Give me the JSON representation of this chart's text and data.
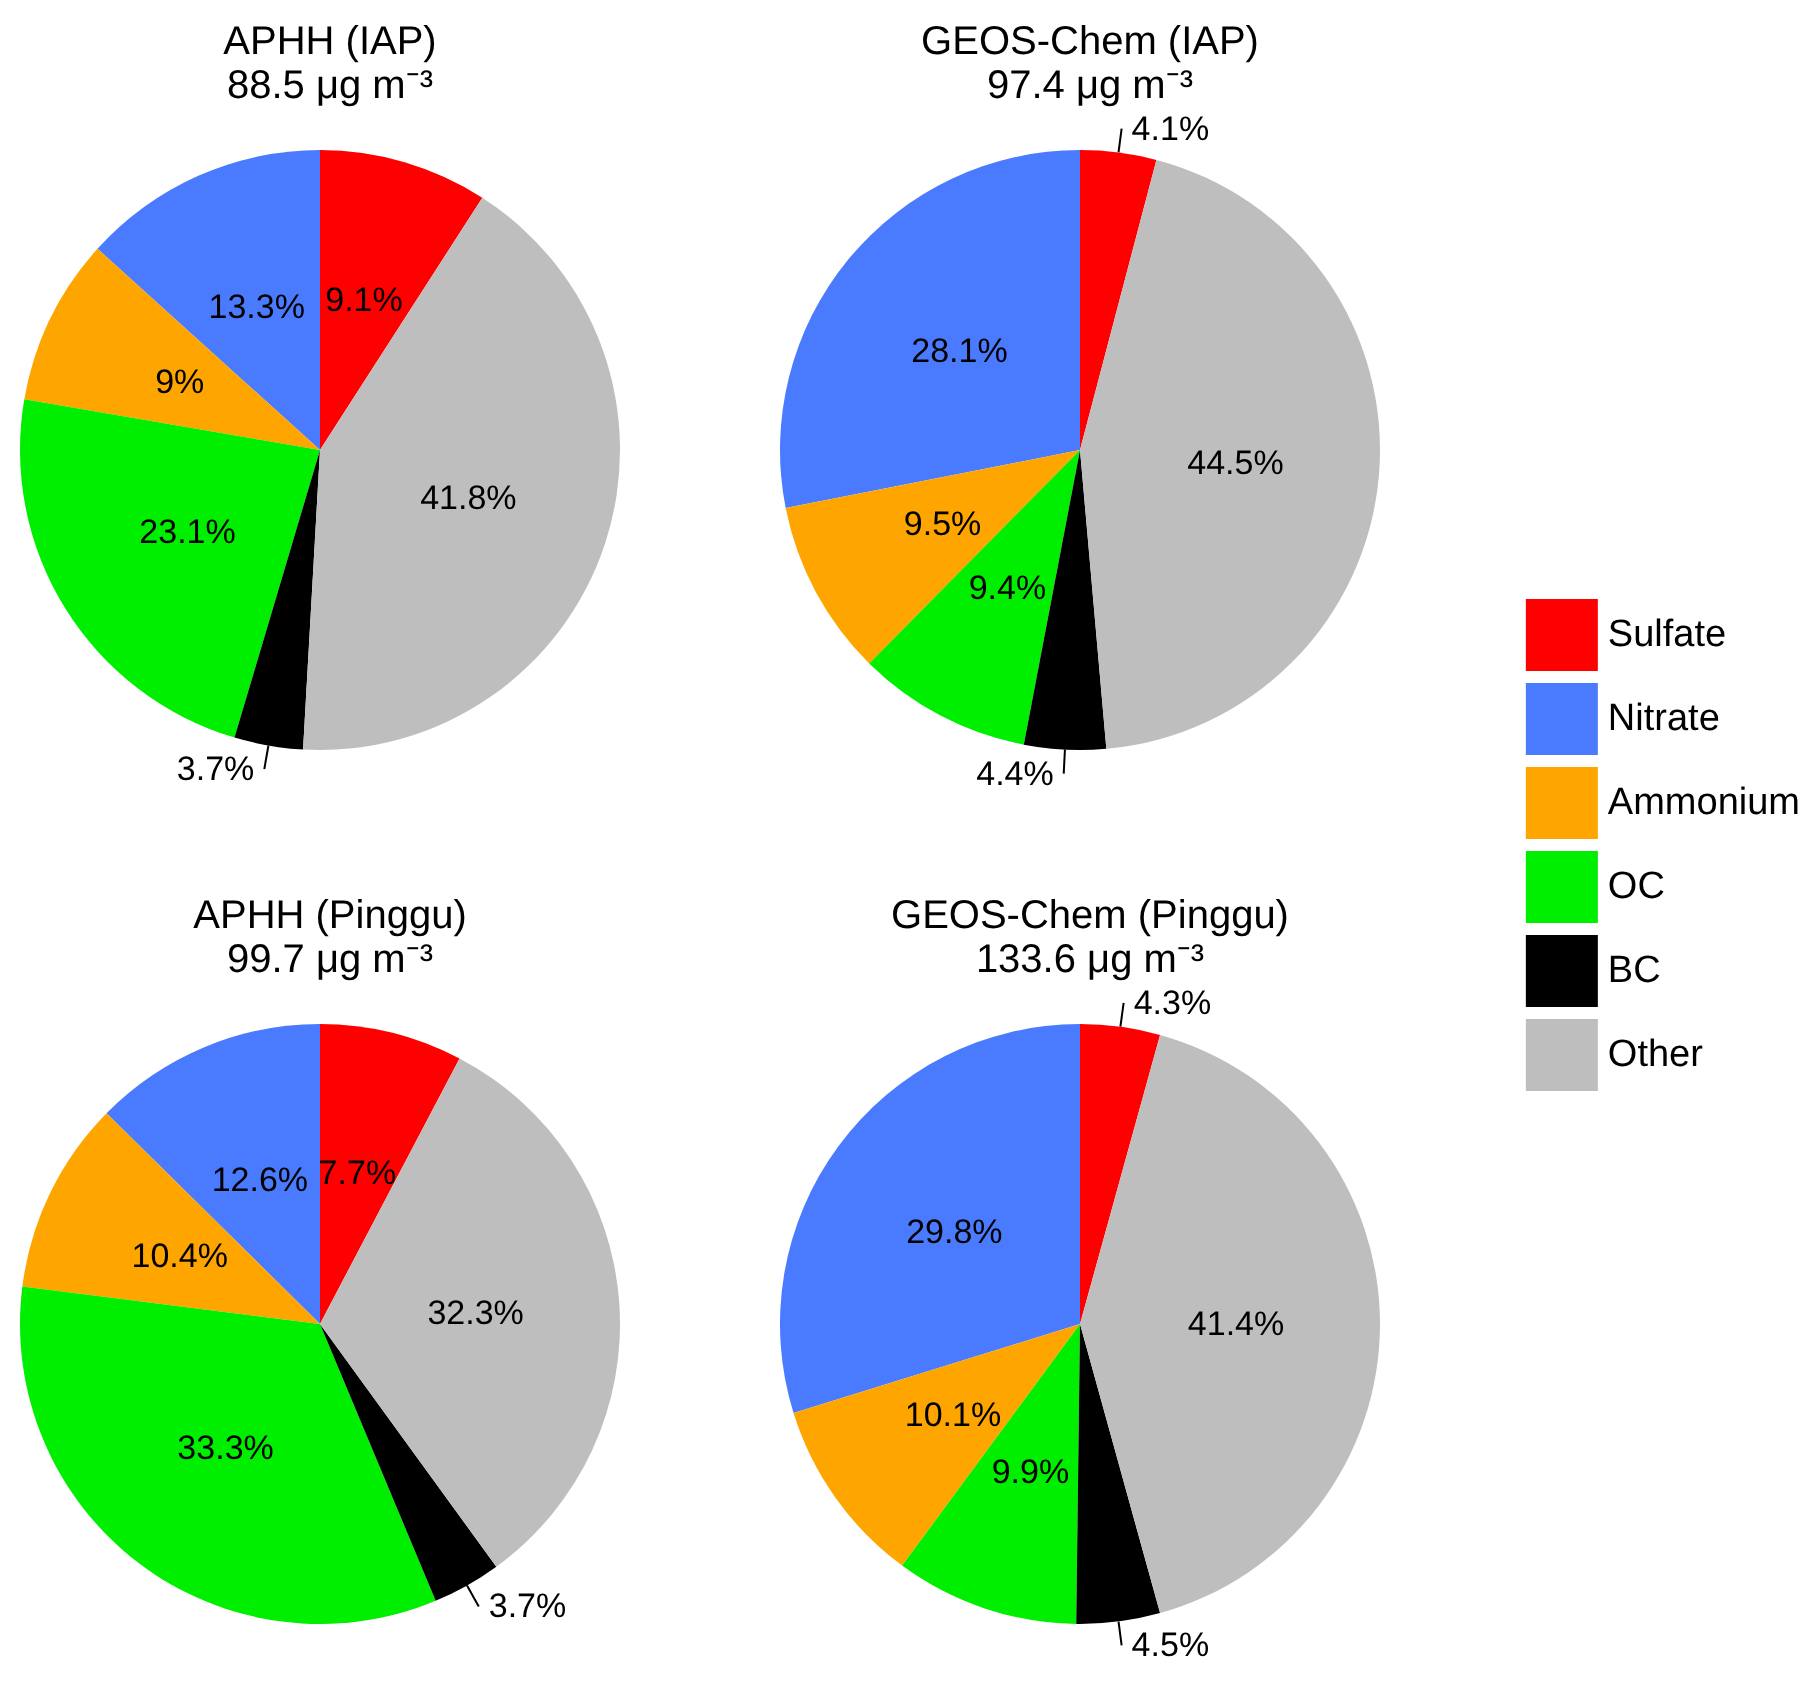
{
  "chart_data": {
    "type": "pie",
    "legend": "right",
    "categories": [
      "Sulfate",
      "Nitrate",
      "Ammonium",
      "OC",
      "BC",
      "Other"
    ],
    "colors": [
      "#ff0000",
      "#4a7bff",
      "#ffa500",
      "#00ee00",
      "#000000",
      "#bebebe"
    ],
    "series": [
      {
        "name": "APHH (IAP)\n88.5 μg m⁻³",
        "values": [
          9.1,
          13.3,
          9,
          23.1,
          3.7,
          41.8
        ],
        "value_labels": [
          "9.1%",
          "13.3%",
          "9%",
          "23.1%",
          "3.7%",
          "41.8%"
        ]
      },
      {
        "name": "GEOS-Chem (IAP)\n97.4 μg m⁻³",
        "values": [
          4.1,
          28.1,
          9.5,
          9.4,
          4.4,
          44.5
        ],
        "value_labels": [
          "4.1%",
          "28.1%",
          "9.5%",
          "9.4%",
          "4.4%",
          "44.5%"
        ]
      },
      {
        "name": "APHH (Pinggu)\n99.7 μg m⁻³",
        "values": [
          7.7,
          12.6,
          10.4,
          33.3,
          3.7,
          32.3
        ],
        "value_labels": [
          "7.7%",
          "12.6%",
          "10.4%",
          "33.3%",
          "3.7%",
          "32.3%"
        ]
      },
      {
        "name": "GEOS-Chem (Pinggu)\n133.6 μg m⁻³",
        "values": [
          4.3,
          29.8,
          10.1,
          9.9,
          4.5,
          41.4
        ],
        "value_labels": [
          "4.3%",
          "29.8%",
          "10.1%",
          "9.9%",
          "4.5%",
          "41.4%"
        ]
      }
    ]
  }
}
